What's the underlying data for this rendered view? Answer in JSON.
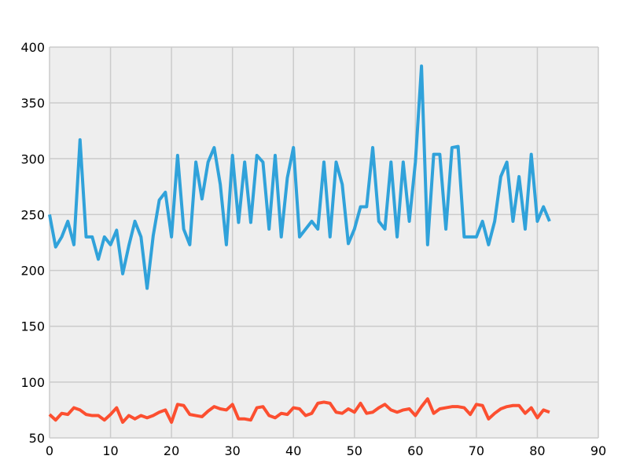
{
  "chart_data": {
    "type": "line",
    "title": "",
    "xlabel": "",
    "ylabel": "",
    "xlim": [
      0,
      90
    ],
    "ylim": [
      50,
      400
    ],
    "xticks": [
      0,
      10,
      20,
      30,
      40,
      50,
      60,
      70,
      80,
      90
    ],
    "yticks": [
      50,
      100,
      150,
      200,
      250,
      300,
      350,
      400
    ],
    "grid": true,
    "background": "#eeeeee",
    "grid_color": "#cbcbcb",
    "x": [
      0,
      1,
      2,
      3,
      4,
      5,
      6,
      7,
      8,
      9,
      10,
      11,
      12,
      13,
      14,
      15,
      16,
      17,
      18,
      19,
      20,
      21,
      22,
      23,
      24,
      25,
      26,
      27,
      28,
      29,
      30,
      31,
      32,
      33,
      34,
      35,
      36,
      37,
      38,
      39,
      40,
      41,
      42,
      43,
      44,
      45,
      46,
      47,
      48,
      49,
      50,
      51,
      52,
      53,
      54,
      55,
      56,
      57,
      58,
      59,
      60,
      61,
      62,
      63,
      64,
      65,
      66,
      67,
      68,
      69,
      70,
      71,
      72,
      73,
      74,
      75,
      76,
      77,
      78,
      79,
      80,
      81,
      82
    ],
    "series": [
      {
        "color": "#30a2da",
        "values": [
          250,
          221,
          230,
          244,
          223,
          317,
          230,
          230,
          210,
          230,
          223,
          236,
          197,
          222,
          244,
          230,
          184,
          231,
          263,
          270,
          230,
          303,
          237,
          223,
          297,
          264,
          297,
          310,
          277,
          223,
          303,
          243,
          297,
          243,
          303,
          297,
          237,
          303,
          230,
          283,
          310,
          230,
          237,
          244,
          237,
          297,
          230,
          297,
          277,
          224,
          237,
          257,
          257,
          310,
          244,
          237,
          297,
          230,
          297,
          244,
          297,
          383,
          223,
          304,
          304,
          237,
          310,
          311,
          230,
          230,
          230,
          244,
          223,
          244,
          284,
          297,
          244,
          284,
          237,
          304,
          244,
          257,
          244
        ]
      },
      {
        "color": "#fc4f30",
        "values": [
          71,
          66,
          72,
          71,
          77,
          75,
          71,
          70,
          70,
          66,
          71,
          77,
          64,
          70,
          67,
          70,
          68,
          70,
          73,
          75,
          64,
          80,
          79,
          71,
          70,
          69,
          74,
          78,
          76,
          75,
          80,
          67,
          67,
          66,
          77,
          78,
          70,
          68,
          72,
          71,
          77,
          76,
          70,
          72,
          81,
          82,
          81,
          73,
          72,
          76,
          73,
          81,
          72,
          73,
          77,
          80,
          75,
          73,
          75,
          76,
          70,
          78,
          85,
          72,
          76,
          77,
          78,
          78,
          77,
          71,
          80,
          79,
          67,
          72,
          76,
          78,
          79,
          79,
          72,
          77,
          68,
          75,
          73
        ]
      }
    ]
  }
}
